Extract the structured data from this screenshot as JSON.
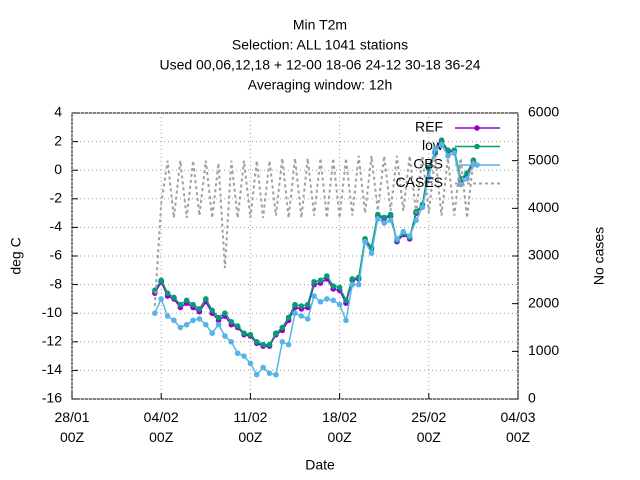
{
  "chart_data": {
    "type": "line",
    "title": [
      "Min T2m",
      "Selection: ALL   1041 stations",
      "Used  00,06,12,18  + 12-00 18-06 24-12 30-18 36-24",
      "Averaging window: 12h"
    ],
    "x_label": "Date",
    "y_label": "deg C",
    "y2_label": "No cases",
    "x": [
      6.5,
      7,
      7.5,
      8,
      8.5,
      9,
      9.5,
      10,
      10.5,
      11,
      11.5,
      12,
      12.5,
      13,
      13.5,
      14,
      14.5,
      15,
      15.5,
      16,
      16.5,
      17,
      17.5,
      18,
      18.5,
      19,
      19.5,
      20,
      20.5,
      21,
      21.5,
      22,
      22.5,
      23,
      23.5,
      24,
      24.5,
      25,
      25.5,
      26,
      26.5,
      27,
      27.5,
      28,
      28.5,
      29,
      29.5,
      30,
      30.5,
      31,
      31.5
    ],
    "xlim": [
      0,
      35
    ],
    "xticks": [
      {
        "value": 0,
        "label": "28/01\n00Z"
      },
      {
        "value": 7,
        "label": "04/02\n00Z"
      },
      {
        "value": 14,
        "label": "11/02\n00Z"
      },
      {
        "value": 21,
        "label": "18/02\n00Z"
      },
      {
        "value": 28,
        "label": "25/02\n00Z"
      },
      {
        "value": 35,
        "label": "04/03\n00Z"
      }
    ],
    "ylim": [
      -16,
      4
    ],
    "yticks": [
      -16,
      -14,
      -12,
      -10,
      -8,
      -6,
      -4,
      -2,
      0,
      2,
      4
    ],
    "y2lim": [
      0,
      6000
    ],
    "y2ticks": [
      0,
      1000,
      2000,
      3000,
      4000,
      5000,
      6000
    ],
    "grid": true,
    "legend": "top-right",
    "series": [
      {
        "name": "REF",
        "color": "#9400d3",
        "values": [
          -8.6,
          -7.8,
          -8.8,
          -9.0,
          -9.6,
          -9.3,
          -9.6,
          -9.9,
          -9.2,
          -10.0,
          -10.5,
          -10.2,
          -10.8,
          -11.0,
          -11.5,
          -11.6,
          -12.1,
          -12.3,
          -12.3,
          -11.5,
          -11.2,
          -10.5,
          -9.6,
          -9.7,
          -9.6,
          -8.0,
          -7.9,
          -7.6,
          -8.3,
          -8.4,
          -9.3,
          -7.7,
          -7.6,
          -4.9,
          -5.5,
          -3.2,
          -3.4,
          -3.2,
          -5.0,
          -4.5,
          -4.8,
          -3.0,
          -2.5,
          0.1,
          1.2,
          2.0,
          1.3,
          1.3,
          -0.7,
          -0.3,
          0.6
        ]
      },
      {
        "name": "low",
        "color": "#009e73",
        "values": [
          -8.4,
          -7.7,
          -8.6,
          -8.9,
          -9.4,
          -9.1,
          -9.4,
          -9.7,
          -9.0,
          -9.8,
          -10.3,
          -10.0,
          -10.6,
          -10.9,
          -11.4,
          -11.5,
          -12.0,
          -12.2,
          -12.2,
          -11.4,
          -11.0,
          -10.3,
          -9.4,
          -9.5,
          -9.4,
          -7.8,
          -7.7,
          -7.4,
          -8.1,
          -8.2,
          -9.1,
          -7.6,
          -7.5,
          -4.8,
          -5.4,
          -3.1,
          -3.3,
          -3.1,
          -4.9,
          -4.4,
          -4.7,
          -2.9,
          -2.4,
          0.2,
          1.3,
          2.1,
          1.4,
          1.4,
          -0.6,
          -0.2,
          0.7
        ]
      },
      {
        "name": "OBS",
        "color": "#56b4e9",
        "values": [
          -10.0,
          -9.0,
          -10.2,
          -10.5,
          -11.0,
          -10.8,
          -10.5,
          -10.4,
          -10.8,
          -11.4,
          -10.8,
          -11.6,
          -12.0,
          -12.8,
          -13.0,
          -13.5,
          -14.3,
          -13.8,
          -14.2,
          -14.3,
          -12.0,
          -12.2,
          -10.0,
          -10.2,
          -10.4,
          -8.8,
          -9.2,
          -9.0,
          -9.1,
          -9.4,
          -10.5,
          -8.0,
          -8.0,
          -5.0,
          -5.8,
          -3.4,
          -3.7,
          -3.5,
          -4.8,
          -4.3,
          -4.6,
          -3.5,
          -2.6,
          -0.5,
          1.5,
          1.8,
          1.0,
          1.2,
          -1.0,
          -0.6,
          0.4
        ]
      },
      {
        "name": "CASES",
        "color": "#a0a0a0",
        "axis": "y2",
        "dashed": true,
        "values": [
          1950,
          4100,
          5000,
          3800,
          5000,
          3800,
          5000,
          3850,
          5000,
          3800,
          4950,
          2750,
          5000,
          3800,
          5000,
          3800,
          5000,
          3800,
          5000,
          3850,
          5050,
          3800,
          5050,
          3800,
          5050,
          3850,
          5050,
          3800,
          5050,
          3800,
          5050,
          3850,
          5100,
          3900,
          5100,
          3950,
          5100,
          3950,
          5100,
          3950,
          5100,
          3900,
          5100,
          3900,
          5100,
          3850,
          5050,
          3850,
          5050,
          3800,
          5000
        ]
      }
    ]
  }
}
